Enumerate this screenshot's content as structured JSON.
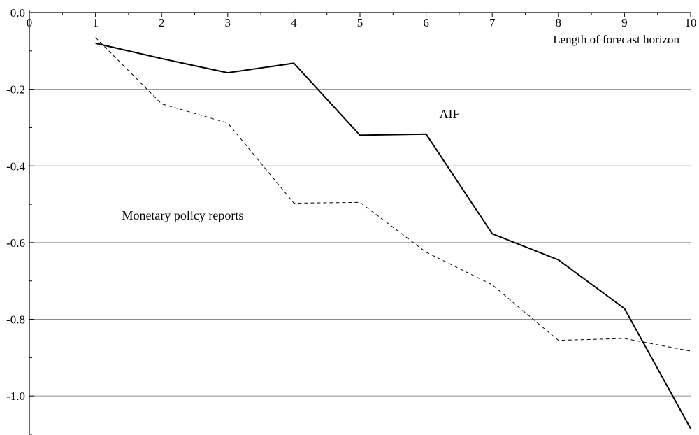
{
  "chart_data": {
    "type": "line",
    "title": "",
    "xlabel": "Length of forecast horizon",
    "ylabel": "",
    "xlim": [
      0,
      10
    ],
    "ylim": [
      -1.1,
      0.0
    ],
    "x_ticks": [
      0,
      1,
      2,
      3,
      4,
      5,
      6,
      7,
      8,
      9,
      10
    ],
    "y_ticks": [
      0.0,
      -0.2,
      -0.4,
      -0.6,
      -0.8,
      -1.0
    ],
    "x_tick_labels": [
      "0",
      "1",
      "2",
      "3",
      "4",
      "5",
      "6",
      "7",
      "8",
      "9",
      "10"
    ],
    "y_tick_labels": [
      "0.0",
      "-0.2",
      "-0.4",
      "-0.6",
      "-0.8",
      "-1.0"
    ],
    "grid": "horizontal",
    "series": [
      {
        "name": "AIF",
        "style": "solid",
        "color": "#000000",
        "x": [
          1,
          2,
          3,
          4,
          5,
          6,
          7,
          8,
          9,
          10
        ],
        "values": [
          -0.08,
          -0.12,
          -0.157,
          -0.132,
          -0.32,
          -0.317,
          -0.577,
          -0.645,
          -0.772,
          -1.085
        ]
      },
      {
        "name": "Monetary policy reports",
        "style": "dashed",
        "color": "#000000",
        "x": [
          1,
          2,
          3,
          4,
          5,
          6,
          7,
          8,
          9,
          10
        ],
        "values": [
          -0.065,
          -0.238,
          -0.288,
          -0.497,
          -0.495,
          -0.625,
          -0.71,
          -0.855,
          -0.85,
          -0.883
        ]
      }
    ],
    "annotations": [
      {
        "text": "AIF",
        "x": 6.2,
        "y": -0.275
      },
      {
        "text": "Monetary policy reports",
        "x": 1.4,
        "y": -0.54
      }
    ]
  }
}
